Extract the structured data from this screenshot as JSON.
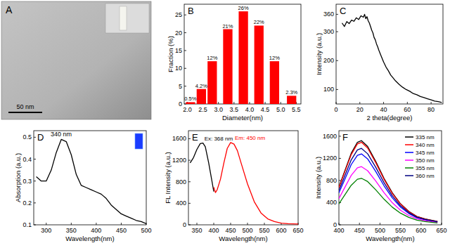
{
  "image_panel": {
    "label": "A",
    "scale_bar": "50 nm"
  },
  "chart_data": [
    {
      "type": "bar",
      "title": "B",
      "x": [
        2.1,
        2.45,
        2.8,
        3.3,
        3.8,
        4.3,
        4.8,
        5.35
      ],
      "values": [
        0.5,
        4.2,
        12,
        21,
        26,
        22,
        12,
        2.3
      ],
      "value_labels": [
        "0.5%",
        "4.2%",
        "12%",
        "21%",
        "26%",
        "22%",
        "12%",
        "2.3%"
      ],
      "data_labels": true,
      "color": "#ff0000",
      "x_label": "Diameter(nm)",
      "y_label": "Fraction (%)",
      "xlim": [
        1.9,
        5.65
      ],
      "xticks": [
        {
          "value": 2,
          "label": "2.0"
        },
        {
          "value": 2.5,
          "label": "2.5"
        },
        {
          "value": 3,
          "label": "3.0"
        },
        {
          "value": 3.5,
          "label": "3.5"
        },
        {
          "value": 4,
          "label": "4.0"
        },
        {
          "value": 4.5,
          "label": "4.5"
        },
        {
          "value": 5,
          "label": "5.0"
        },
        {
          "value": 5.5,
          "label": "5.5"
        }
      ],
      "ylim": [
        0,
        28
      ],
      "yticks": [
        0,
        5,
        10,
        15,
        20,
        25
      ]
    },
    {
      "type": "line",
      "title": "C",
      "x": [
        5,
        7,
        9,
        11,
        13,
        15,
        17,
        19,
        21,
        23,
        24,
        25,
        26,
        27,
        28,
        29,
        30,
        31,
        32,
        33,
        34,
        35,
        36,
        38,
        40,
        42,
        44,
        46,
        48,
        50,
        53,
        56,
        59,
        62,
        65,
        68,
        71,
        74,
        77,
        80,
        83,
        86,
        89
      ],
      "values": [
        330,
        318,
        335,
        328,
        340,
        336,
        348,
        342,
        355,
        350,
        360,
        345,
        352,
        338,
        330,
        318,
        305,
        296,
        280,
        272,
        258,
        248,
        236,
        215,
        195,
        178,
        165,
        150,
        140,
        130,
        118,
        108,
        100,
        94,
        86,
        82,
        76,
        72,
        68,
        64,
        60,
        58,
        55
      ],
      "color": "#000000",
      "x_label": "2 theta(degree)",
      "y_label": "Intensity (a.u.)",
      "xlim": [
        0,
        90
      ],
      "xticks": [
        0,
        20,
        40,
        60,
        80
      ],
      "ylim": [
        50,
        395
      ],
      "yticks": [
        100,
        200,
        300,
        360
      ]
    },
    {
      "type": "line",
      "title": "D",
      "x": [
        280,
        290,
        300,
        310,
        320,
        330,
        340,
        350,
        360,
        370,
        380,
        390,
        400,
        410,
        420,
        430,
        440,
        450,
        460,
        470,
        480,
        490,
        500
      ],
      "values": [
        0.32,
        0.3,
        0.3,
        0.35,
        0.43,
        0.49,
        0.48,
        0.42,
        0.33,
        0.28,
        0.27,
        0.26,
        0.25,
        0.24,
        0.22,
        0.19,
        0.17,
        0.15,
        0.14,
        0.13,
        0.12,
        0.115,
        0.105
      ],
      "color": "#000000",
      "annotations": [
        "340 nm"
      ],
      "x_label": "Wavelength(nm)",
      "y_label": "Absorption (a.u.)",
      "xlim": [
        275,
        500
      ],
      "xticks": [
        300,
        350,
        400,
        450,
        500
      ],
      "ylim": [
        0.1,
        0.53
      ],
      "yticks": [
        0.1,
        0.2,
        0.3,
        0.4,
        0.5
      ]
    },
    {
      "type": "line",
      "title": "E",
      "x": [
        330,
        340,
        350,
        360,
        368,
        375,
        385,
        395,
        400,
        405,
        410,
        420,
        430,
        440,
        450,
        460,
        470,
        480,
        500,
        520,
        540,
        560,
        580,
        600,
        620,
        650
      ],
      "series": [
        {
          "name": "Ex: 368 nm",
          "color": "#000000",
          "values": [
            1150,
            1250,
            1400,
            1510,
            1520,
            1450,
            1150,
            800,
            620,
            null,
            null,
            null,
            null,
            null,
            null,
            null,
            null,
            null,
            null,
            null,
            null,
            null,
            null,
            null,
            null,
            null
          ]
        },
        {
          "name": "Em: 450 nm",
          "color": "#ff0000",
          "values": [
            null,
            null,
            null,
            null,
            null,
            null,
            null,
            null,
            700,
            600,
            650,
            850,
            1150,
            1420,
            1530,
            1500,
            1380,
            1170,
            760,
            430,
            220,
            110,
            60,
            30,
            20,
            15
          ]
        }
      ],
      "x_label": "Wavelength(nm)",
      "y_label": "FL Intensity (a.u.)",
      "xlim": [
        325,
        650
      ],
      "xticks": [
        350,
        400,
        450,
        500,
        550,
        600,
        650
      ],
      "ylim": [
        0,
        1750
      ],
      "yticks": [
        0,
        400,
        800,
        1200,
        1600
      ]
    },
    {
      "type": "line",
      "title": "F",
      "legend": "upper right",
      "x": [
        400,
        415,
        430,
        445,
        455,
        470,
        490,
        510,
        530,
        550,
        570,
        590,
        610,
        640
      ],
      "series": [
        {
          "name": "335 nm",
          "color": "#000000",
          "values": [
            684,
            988,
            1292,
            1490,
            1520,
            1414,
            1140,
            836,
            578,
            380,
            243,
            152,
            106,
            61
          ]
        },
        {
          "name": "340 nm",
          "color": "#ff0000",
          "values": [
            671,
            969,
            1267,
            1460,
            1490,
            1386,
            1118,
            820,
            566,
            373,
            238,
            149,
            104,
            60
          ]
        },
        {
          "name": "345 nm",
          "color": "#0000ff",
          "values": [
            576,
            832,
            1088,
            1254,
            1280,
            1190,
            960,
            704,
            486,
            320,
            205,
            128,
            90,
            51
          ]
        },
        {
          "name": "350 nm",
          "color": "#ff00ff",
          "values": [
            473,
            683,
            893,
            1029,
            1050,
            977,
            788,
            578,
            399,
            263,
            168,
            105,
            74,
            42
          ]
        },
        {
          "name": "355 nm",
          "color": "#008000",
          "values": [
            378,
            546,
            714,
            823,
            840,
            781,
            630,
            462,
            319,
            210,
            134,
            84,
            59,
            34
          ]
        },
        {
          "name": "360 nm",
          "color": "#000080",
          "values": [
            621,
            897,
            1173,
            1352,
            1380,
            1283,
            1035,
            759,
            524,
            345,
            221,
            138,
            97,
            55
          ]
        }
      ],
      "x_label": "Wavelength(nm)",
      "y_label": "Intensity (a.u.)",
      "xlim": [
        400,
        650
      ],
      "xticks": [
        400,
        450,
        500,
        550,
        600,
        650
      ],
      "ylim": [
        0,
        1700
      ],
      "yticks": [
        0,
        400,
        800,
        1200,
        1600
      ]
    }
  ]
}
